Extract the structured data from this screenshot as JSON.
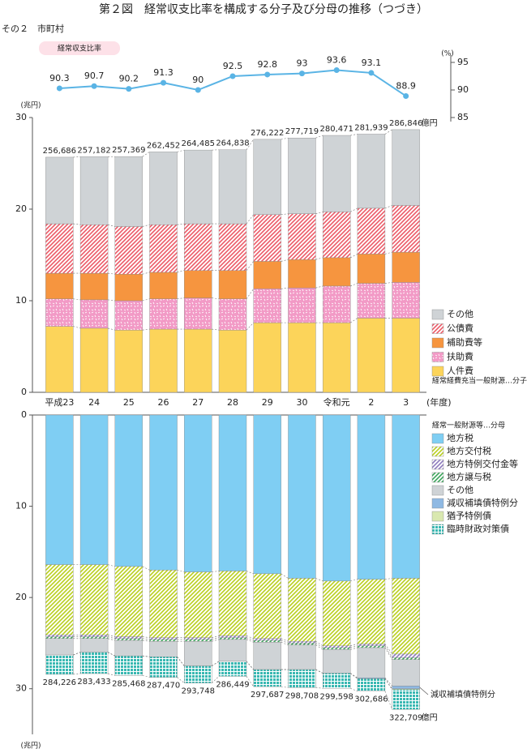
{
  "header": {
    "title": "第２図　経常収支比率を構成する分子及び分母の推移（つづき）",
    "subtitle": "その２　市町村"
  },
  "chart_data": [
    {
      "type": "line",
      "name": "経常収支比率",
      "color": "#5ab4e5",
      "values": [
        90.3,
        90.7,
        90.2,
        91.3,
        90.0,
        92.5,
        92.8,
        93.0,
        93.6,
        93.1,
        88.9
      ],
      "ylim": [
        85,
        95
      ],
      "yticks": [
        85,
        90,
        95
      ],
      "y_label": "(%)",
      "axis_side": "right"
    },
    {
      "type": "stacked_bar",
      "y_label": "(兆円)",
      "x_label": "(年度)",
      "categories": [
        "平成23",
        "24",
        "25",
        "26",
        "27",
        "28",
        "29",
        "30",
        "令和元",
        "2",
        "3"
      ],
      "ylim": [
        0,
        30
      ],
      "yticks": [
        0,
        10,
        20,
        30
      ],
      "series": [
        {
          "name": "人件費",
          "color": "#fcd45a",
          "values": [
            7.2,
            7.0,
            6.8,
            6.9,
            6.9,
            6.8,
            7.6,
            7.6,
            7.6,
            8.1,
            8.1
          ]
        },
        {
          "name": "扶助費",
          "color": "#f29ac6",
          "pattern": "speckle",
          "values": [
            3.0,
            3.1,
            3.2,
            3.3,
            3.4,
            3.4,
            3.7,
            3.8,
            4.0,
            3.8,
            3.9
          ]
        },
        {
          "name": "補助費等",
          "color": "#f6953f",
          "values": [
            2.8,
            2.9,
            2.9,
            2.9,
            3.0,
            3.1,
            3.0,
            3.1,
            3.1,
            3.2,
            3.3
          ]
        },
        {
          "name": "公債費",
          "color": "#ec5a67",
          "pattern": "diagonal",
          "values": [
            5.4,
            5.3,
            5.2,
            5.2,
            5.1,
            5.1,
            5.1,
            5.0,
            5.0,
            5.0,
            5.1
          ]
        },
        {
          "name": "その他",
          "color": "#cfd3d6",
          "values": [
            7.27,
            7.42,
            7.64,
            7.95,
            8.05,
            8.08,
            8.22,
            8.27,
            8.35,
            8.09,
            8.28
          ]
        }
      ],
      "totals": {
        "values": [
          25.6686,
          25.7182,
          25.7369,
          26.2452,
          26.4485,
          26.4838,
          27.6222,
          27.7719,
          28.0471,
          28.1939,
          28.6846
        ],
        "value_labels": [
          "256,686",
          "257,182",
          "257,369",
          "262,452",
          "264,485",
          "264,838",
          "276,222",
          "277,719",
          "280,471",
          "281,939",
          "286,846"
        ]
      },
      "total_unit": "億円",
      "legend_note": "経常経費充当一般財源…分子"
    },
    {
      "type": "stacked_bar",
      "inverted": true,
      "y_label": "(兆円)",
      "ylim": [
        0,
        35
      ],
      "yticks": [
        0,
        10,
        20,
        30
      ],
      "series": [
        {
          "name": "地方税",
          "color": "#7fcef3",
          "values": [
            16.4,
            16.4,
            16.6,
            17.0,
            17.2,
            17.1,
            17.4,
            17.9,
            18.2,
            18.0,
            17.9
          ]
        },
        {
          "name": "地方交付税",
          "color": "#b9cf1e",
          "pattern": "diagonal",
          "values": [
            7.7,
            7.7,
            7.7,
            7.4,
            7.2,
            7.1,
            7.1,
            6.9,
            7.1,
            7.1,
            8.3
          ]
        },
        {
          "name": "地方特例交付金等",
          "color": "#8e7bbd",
          "pattern": "diagonal",
          "values": [
            0.2,
            0.2,
            0.2,
            0.2,
            0.2,
            0.2,
            0.2,
            0.2,
            0.2,
            0.2,
            0.4
          ]
        },
        {
          "name": "地方譲与税",
          "color": "#3aa55a",
          "pattern": "diagonal",
          "values": [
            0.2,
            0.2,
            0.2,
            0.2,
            0.2,
            0.2,
            0.2,
            0.2,
            0.2,
            0.2,
            0.2
          ]
        },
        {
          "name": "その他",
          "color": "#cfd3d6",
          "values": [
            1.8,
            1.5,
            1.7,
            1.7,
            2.7,
            2.4,
            3.0,
            2.7,
            2.6,
            3.3,
            2.9
          ]
        },
        {
          "name": "減収補填債特例分",
          "color": "#8fb9e3",
          "values": [
            0,
            0,
            0,
            0,
            0,
            0,
            0,
            0,
            0,
            0.1,
            0.3
          ]
        },
        {
          "name": "猶予特例債",
          "color": "#d9e8b0",
          "values": [
            0,
            0,
            0,
            0,
            0,
            0,
            0,
            0,
            0,
            0,
            0.1
          ]
        },
        {
          "name": "臨時財政対策債",
          "color": "#39b8b2",
          "pattern": "grid",
          "values": [
            2.12,
            2.34,
            2.15,
            2.25,
            1.87,
            1.64,
            1.87,
            1.97,
            1.66,
            1.37,
            2.17
          ]
        }
      ],
      "totals": {
        "values": [
          28.4226,
          28.3433,
          28.5468,
          28.747,
          29.3748,
          28.6449,
          29.7687,
          29.8708,
          29.9598,
          30.2686,
          32.2709
        ],
        "value_labels": [
          "284,226",
          "283,433",
          "285,468",
          "287,470",
          "293,748",
          "286,449",
          "297,687",
          "298,708",
          "299,598",
          "302,686",
          "322,709"
        ]
      },
      "total_unit": "億円",
      "legend_note": "経常一般財源等…分母",
      "annotation": "減収補填債特例分"
    }
  ]
}
